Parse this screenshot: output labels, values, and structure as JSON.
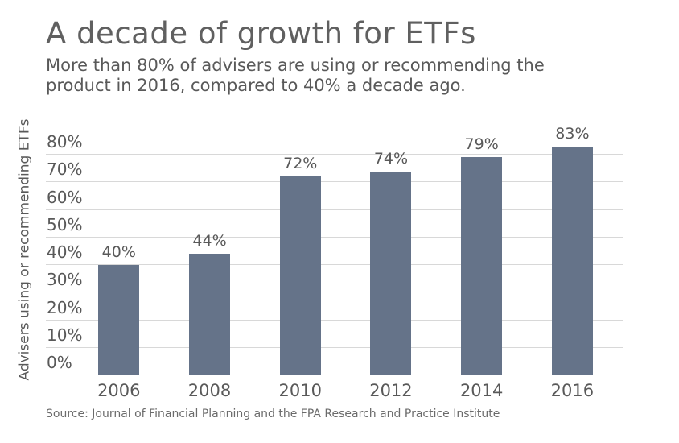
{
  "header": {
    "title": "A decade of growth for ETFs",
    "subtitle_lines": [
      "More than 80% of advisers are using or recommending the",
      "product in 2016, compared to 40% a decade ago."
    ]
  },
  "chart_data": {
    "type": "bar",
    "title": "A decade of growth for ETFs",
    "subtitle": "More than 80% of advisers are using or recommending the product in 2016, compared to 40% a decade ago.",
    "categories": [
      "2006",
      "2008",
      "2010",
      "2012",
      "2014",
      "2016"
    ],
    "values": [
      40,
      44,
      72,
      74,
      79,
      83
    ],
    "data_labels": [
      "40%",
      "44%",
      "72%",
      "74%",
      "79%",
      "83%"
    ],
    "xlabel": "",
    "ylabel": "Advisers using or recommending ETFs",
    "ylim": [
      0,
      80
    ],
    "ytick_step": 10,
    "ytick_labels": [
      "0%",
      "10%",
      "20%",
      "30%",
      "40%",
      "50%",
      "60%",
      "70%",
      "80%"
    ],
    "grid": true,
    "legend_position": "none",
    "colors": {
      "bar": "#657389",
      "grid": "#d8d8d8",
      "axis_line": "#c6c6c6",
      "text": "#595959",
      "title": "#606060",
      "source": "#6b6b6b"
    }
  },
  "footer": {
    "source": "Source: Journal of Financial Planning and the FPA Research and Practice Institute"
  }
}
